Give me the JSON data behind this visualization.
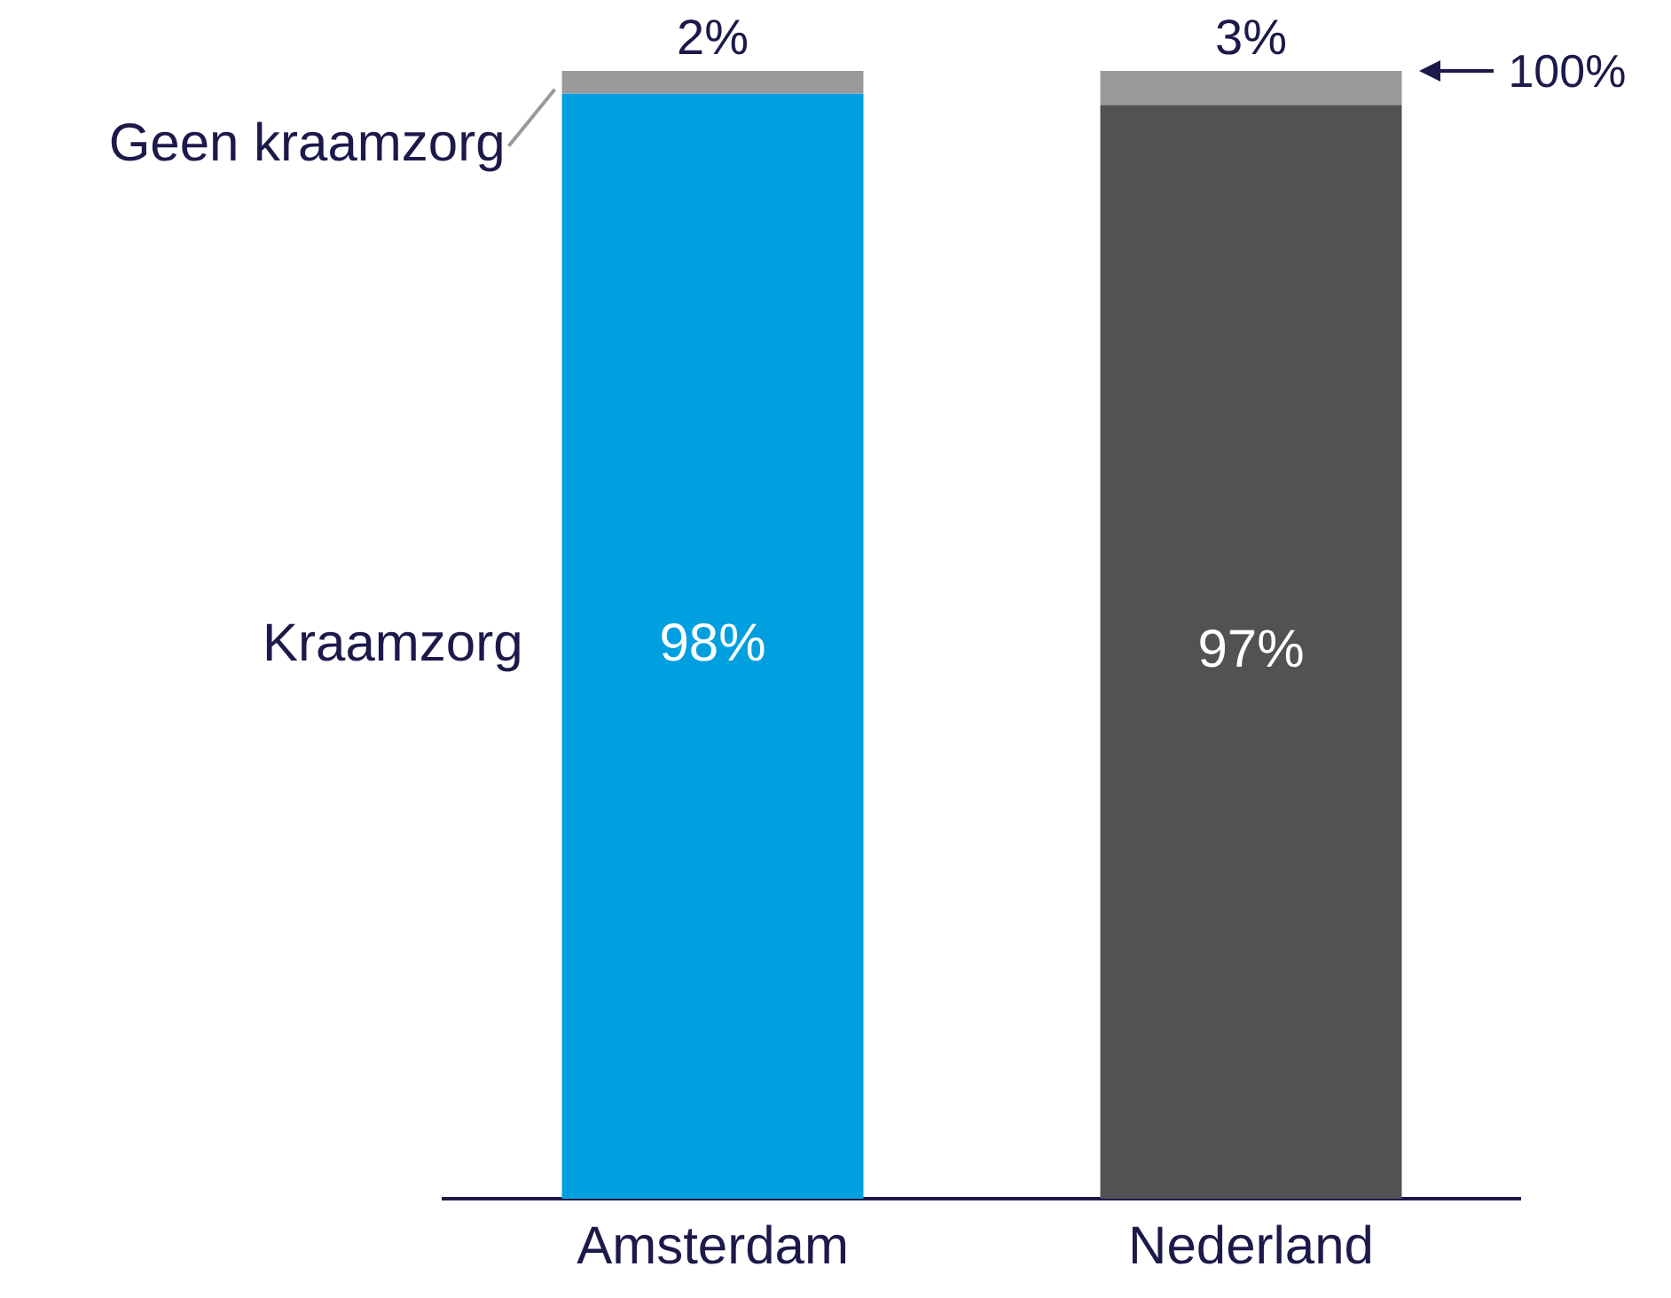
{
  "chart_data": {
    "type": "bar",
    "stacked": true,
    "categories": [
      "Amsterdam",
      "Nederland"
    ],
    "series": [
      {
        "name": "Kraamzorg",
        "colors": [
          "#009fdf",
          "#535153"
        ],
        "values": [
          98,
          97
        ],
        "value_labels": [
          "98%",
          "97%"
        ]
      },
      {
        "name": "Geen kraamzorg",
        "color": "#9a9a9a",
        "values": [
          2,
          3
        ],
        "value_labels": [
          "2%",
          "3%"
        ]
      }
    ],
    "ylim": [
      0,
      100
    ],
    "ref_lines": [
      {
        "axis": "y",
        "value": 100,
        "label": "100%"
      }
    ],
    "grid": false,
    "legend": "left",
    "tick_labels": "x"
  }
}
